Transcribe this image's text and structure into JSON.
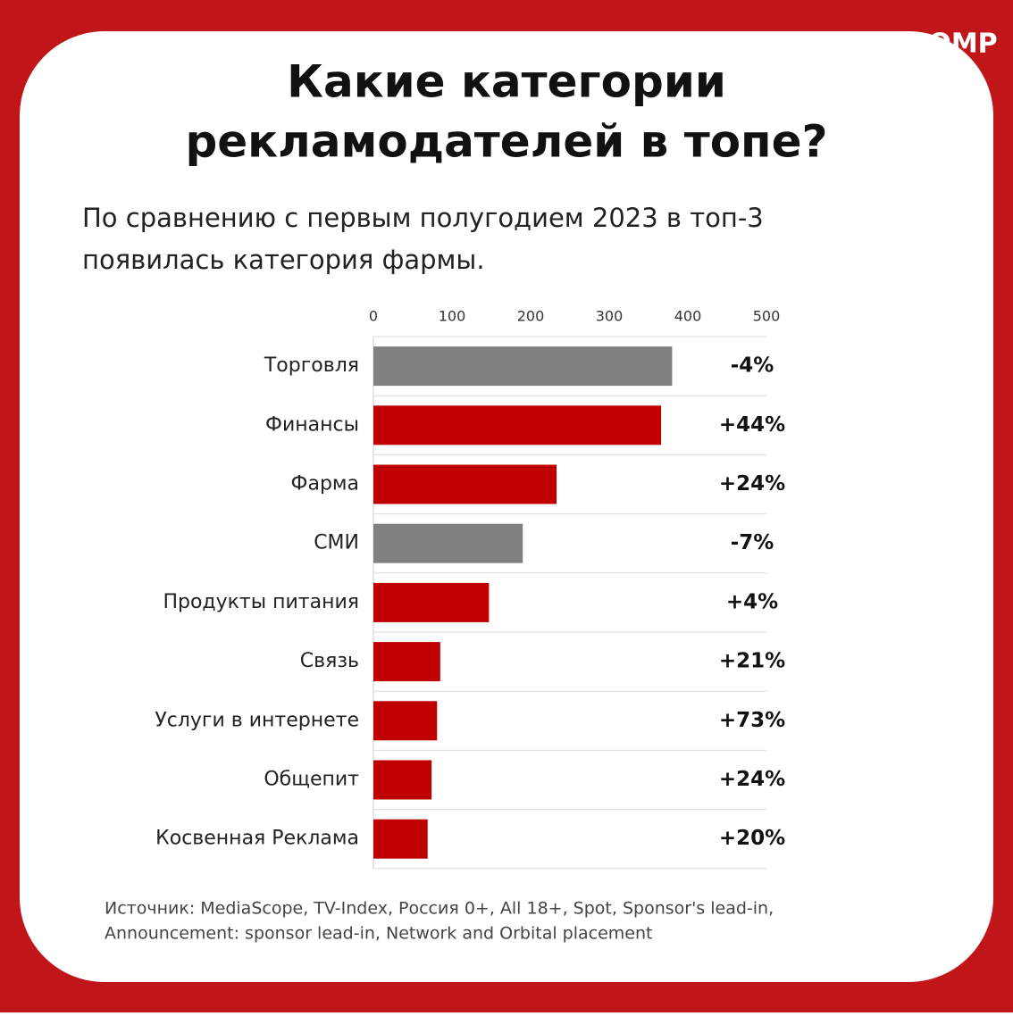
{
  "brand": "OMP",
  "chart_data": {
    "type": "barh",
    "title": [
      "Какие категории",
      "рекламодателей в топе?"
    ],
    "subtitle": [
      "По сравнению с первым полугодием 2023 в топ-3",
      "появилась категория фармы."
    ],
    "categories": [
      "Торговля",
      "Финансы",
      "Фарма",
      "СМИ",
      "Продукты питания",
      "Связь",
      "Услуги в интернете",
      "Общепит",
      "Косвенная Реклама"
    ],
    "values": [
      380,
      366,
      233,
      190,
      147,
      85,
      81,
      74,
      69
    ],
    "colors": [
      "#808080",
      "#c00000",
      "#c00000",
      "#808080",
      "#c00000",
      "#c00000",
      "#c00000",
      "#c00000",
      "#c00000"
    ],
    "change_labels": [
      "-4%",
      "+44%",
      "+24%",
      "-7%",
      "+4%",
      "+21%",
      "+73%",
      "+24%",
      "+20%"
    ],
    "xlim": [
      0,
      500
    ],
    "xticks": [
      0,
      100,
      200,
      300,
      400,
      500
    ],
    "source": [
      "Источник: MediaScope, TV-Index, Россия 0+, All 18+, Spot, Sponsor's lead-in,",
      "Announcement: sponsor lead-in, Network and Orbital placement"
    ]
  }
}
